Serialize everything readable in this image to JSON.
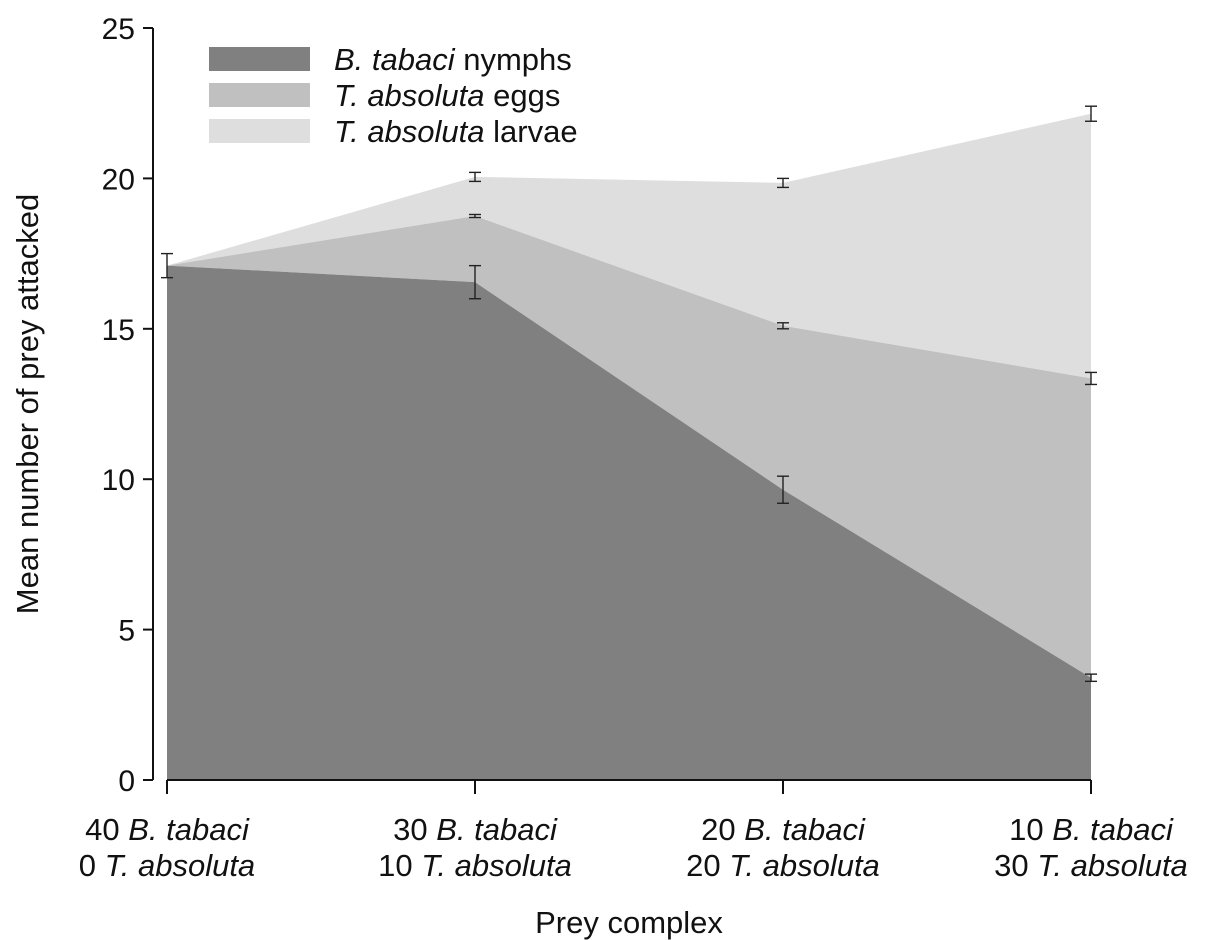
{
  "chart_data": {
    "type": "area",
    "stacked": true,
    "ylabel": "Mean number of prey attacked",
    "xlabel": "Prey complex",
    "ylim": [
      0,
      25
    ],
    "yticks": [
      0,
      5,
      10,
      15,
      20,
      25
    ],
    "grid": false,
    "legend_position": "top-left",
    "categories": [
      {
        "line1_num": "40",
        "line1_name": "B. tabaci",
        "line2_num": "0",
        "line2_name": "T. absoluta"
      },
      {
        "line1_num": "30",
        "line1_name": "B. tabaci",
        "line2_num": "10",
        "line2_name": "T. absoluta"
      },
      {
        "line1_num": "20",
        "line1_name": "B. tabaci",
        "line2_num": "20",
        "line2_name": "T. absoluta"
      },
      {
        "line1_num": "10",
        "line1_name": "B. tabaci",
        "line2_num": "30",
        "line2_name": "T. absoluta"
      }
    ],
    "series": [
      {
        "name_italic": "B. tabaci",
        "name_rest": " nymphs",
        "color": "#808080",
        "values": [
          17.1,
          16.55,
          9.65,
          3.4
        ],
        "errors": [
          0.4,
          0.55,
          0.45,
          0.12
        ]
      },
      {
        "name_italic": "T. absoluta",
        "name_rest": " eggs",
        "color": "#c0c0c0",
        "values": [
          0,
          2.2,
          5.45,
          9.95
        ],
        "errors": [
          0,
          0.05,
          0.1,
          0.2
        ]
      },
      {
        "name_italic": "T. absoluta",
        "name_rest": " larvae",
        "color": "#dedede",
        "values": [
          0,
          1.3,
          4.75,
          8.8
        ],
        "errors": [
          0,
          0.15,
          0.15,
          0.25
        ]
      }
    ]
  }
}
